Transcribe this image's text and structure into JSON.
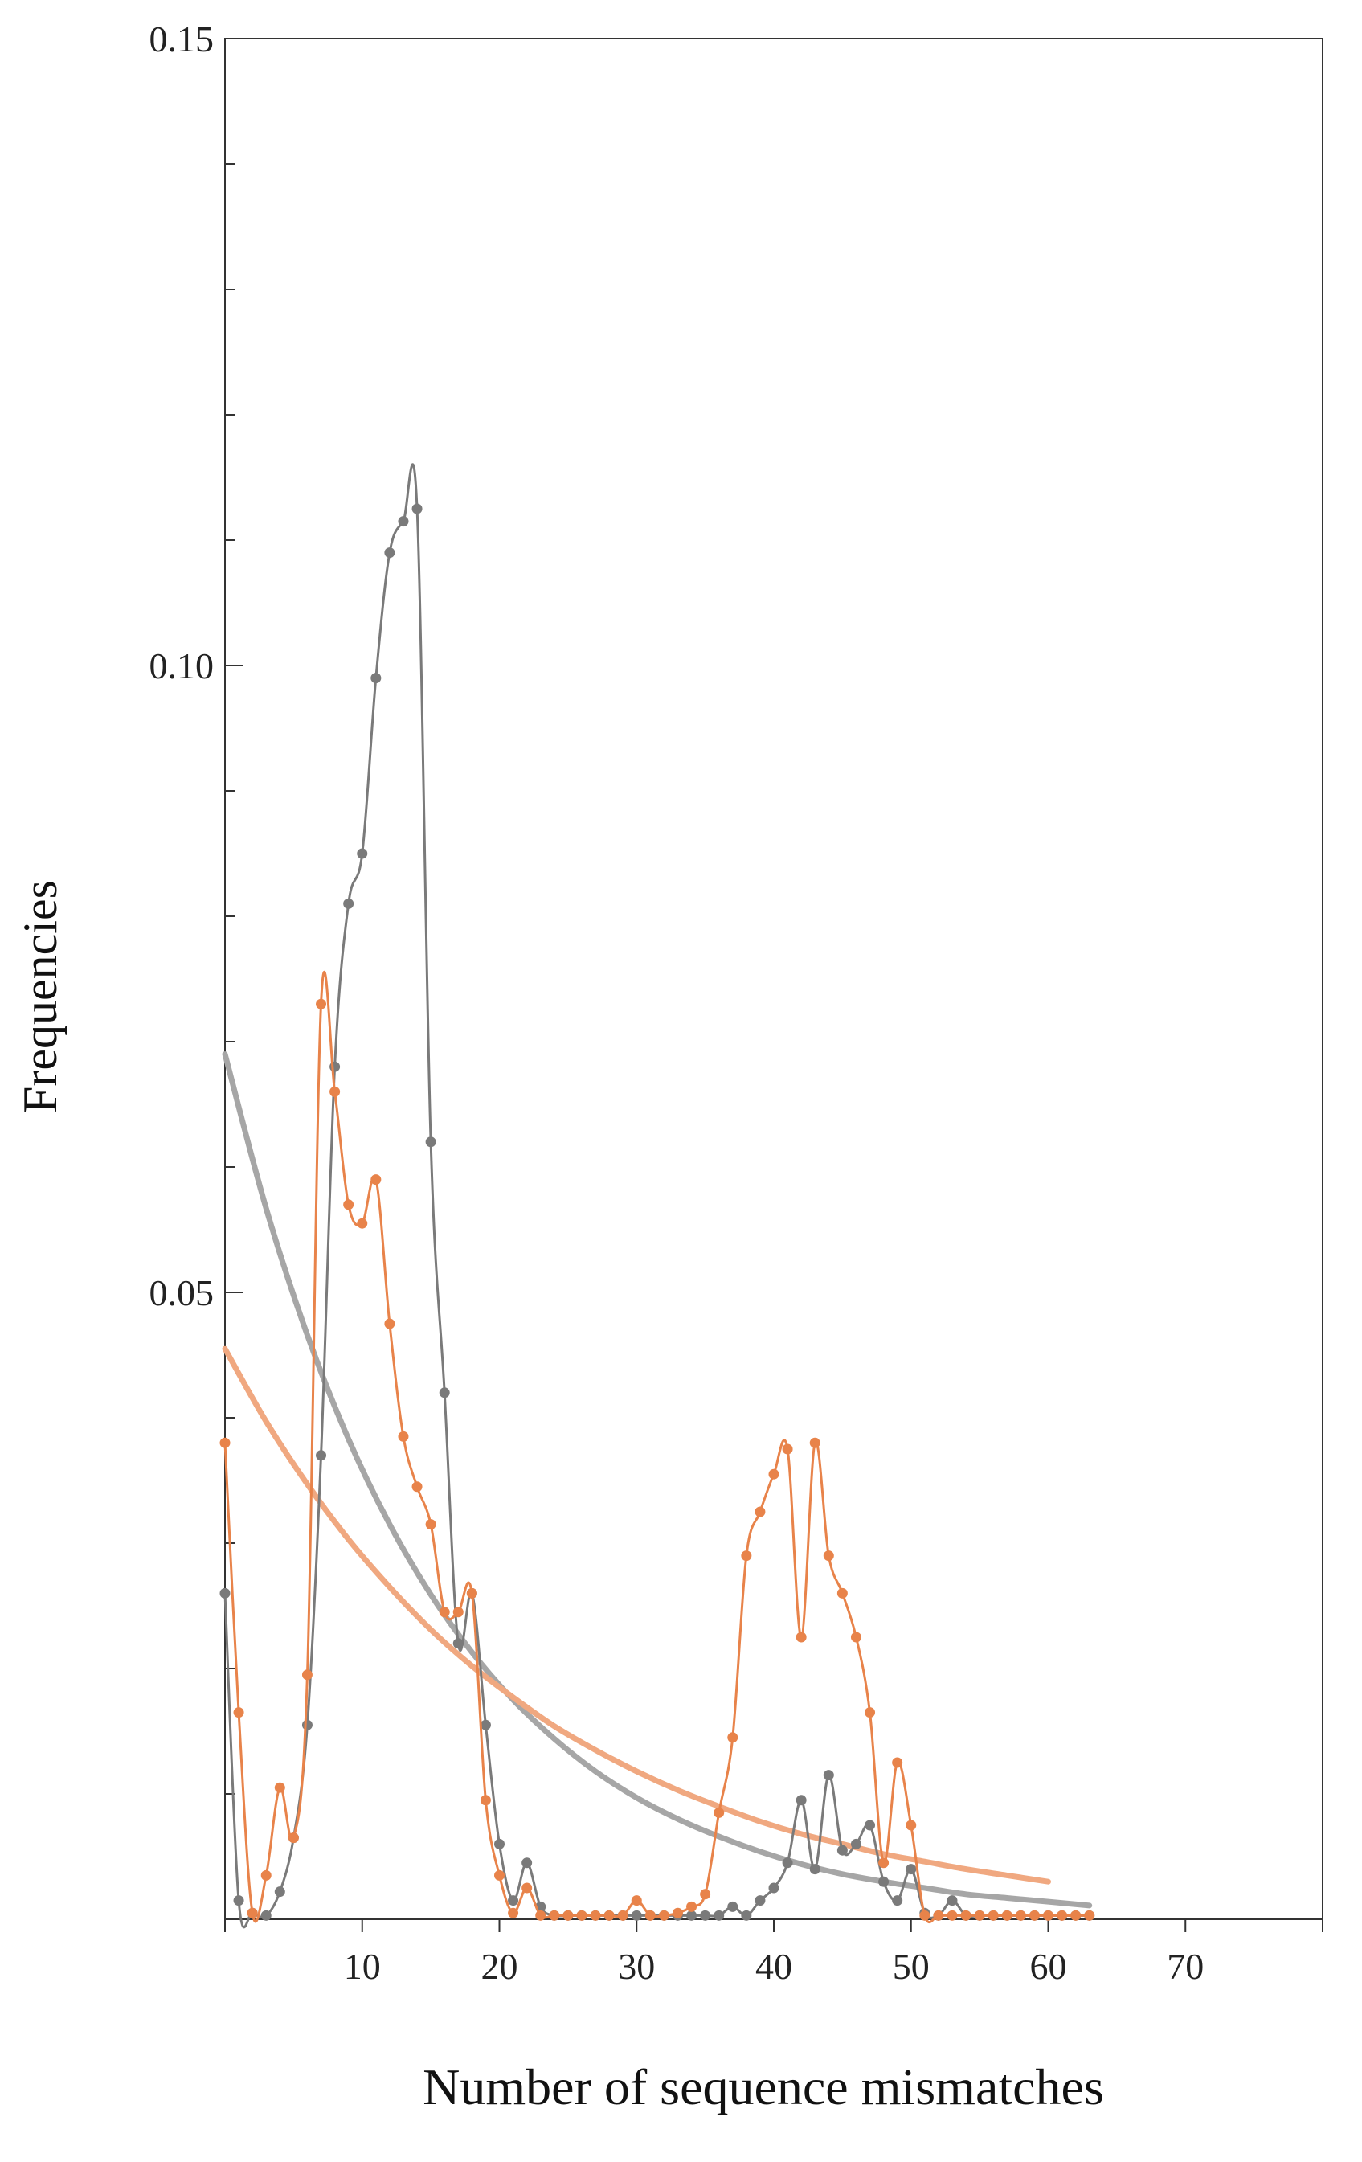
{
  "chart_data": {
    "type": "line",
    "title": "",
    "xlabel": "Number of sequence mismatches",
    "ylabel": "Frequencies",
    "xlim": [
      0,
      80
    ],
    "ylim": [
      0,
      0.15
    ],
    "grid": false,
    "x_ticks": [
      10,
      20,
      30,
      40,
      50,
      60,
      70
    ],
    "x_tick_labels": [
      "10",
      "20",
      "30",
      "40",
      "50",
      "60",
      "70"
    ],
    "y_ticks": [
      0.05,
      0.1,
      0.15
    ],
    "y_tick_labels": [
      "0.05",
      "0.10",
      "0.15"
    ],
    "y_minor_ticks": [
      0.01,
      0.02,
      0.03,
      0.04,
      0.06,
      0.07,
      0.08,
      0.09,
      0.11,
      0.12,
      0.13,
      0.14
    ],
    "series": [
      {
        "kind": "observed",
        "color": "#7a7a7a",
        "x": [
          0,
          1,
          2,
          3,
          4,
          5,
          6,
          7,
          8,
          9,
          10,
          11,
          12,
          13,
          14,
          15,
          16,
          17,
          18,
          19,
          20,
          21,
          22,
          23,
          24,
          25,
          26,
          27,
          28,
          29,
          30,
          31,
          32,
          33,
          34,
          35,
          36,
          37,
          38,
          39,
          40,
          41,
          42,
          43,
          44,
          45,
          46,
          47,
          48,
          49,
          50,
          51,
          52,
          53,
          54,
          55,
          56,
          57,
          58,
          59,
          60,
          61,
          62,
          63
        ],
        "values": [
          0.026,
          0.0015,
          0.0005,
          0.0003,
          0.0022,
          0.0065,
          0.0155,
          0.037,
          0.068,
          0.081,
          0.085,
          0.099,
          0.109,
          0.1115,
          0.1125,
          0.062,
          0.042,
          0.022,
          0.026,
          0.0155,
          0.006,
          0.0015,
          0.0045,
          0.001,
          0.0003,
          0.0003,
          0.0003,
          0.0003,
          0.0003,
          0.0003,
          0.0003,
          0.0003,
          0.0003,
          0.0003,
          0.0003,
          0.0003,
          0.0003,
          0.001,
          0.0003,
          0.0015,
          0.0025,
          0.0045,
          0.0095,
          0.004,
          0.0115,
          0.0055,
          0.006,
          0.0075,
          0.003,
          0.0015,
          0.004,
          0.0005,
          0.0003,
          0.0015,
          0.0003,
          0.0003,
          0.0003,
          0.0003,
          0.0003,
          0.0003,
          0.0003,
          0.0003,
          0.0003,
          0.0003
        ]
      },
      {
        "kind": "observed",
        "color": "#e8834a",
        "x": [
          0,
          1,
          2,
          3,
          4,
          5,
          6,
          7,
          8,
          9,
          10,
          11,
          12,
          13,
          14,
          15,
          16,
          17,
          18,
          19,
          20,
          21,
          22,
          23,
          24,
          25,
          26,
          27,
          28,
          29,
          30,
          31,
          32,
          33,
          34,
          35,
          36,
          37,
          38,
          39,
          40,
          41,
          42,
          43,
          44,
          45,
          46,
          47,
          48,
          49,
          50,
          51,
          52,
          53,
          54,
          55,
          56,
          57,
          58,
          59,
          60,
          61,
          62,
          63
        ],
        "values": [
          0.038,
          0.0165,
          0.0005,
          0.0035,
          0.0105,
          0.0065,
          0.0195,
          0.073,
          0.066,
          0.057,
          0.0555,
          0.059,
          0.0475,
          0.0385,
          0.0345,
          0.0315,
          0.0245,
          0.0245,
          0.026,
          0.0095,
          0.0035,
          0.0005,
          0.0025,
          0.0003,
          0.0003,
          0.0003,
          0.0003,
          0.0003,
          0.0003,
          0.0003,
          0.0015,
          0.0003,
          0.0003,
          0.0005,
          0.001,
          0.002,
          0.0085,
          0.0145,
          0.029,
          0.0325,
          0.0355,
          0.0375,
          0.0225,
          0.038,
          0.029,
          0.026,
          0.0225,
          0.0165,
          0.0045,
          0.0125,
          0.0075,
          0.0003,
          0.0003,
          0.0003,
          0.0003,
          0.0003,
          0.0003,
          0.0003,
          0.0003,
          0.0003,
          0.0003,
          0.0003,
          0.0003,
          0.0003
        ]
      },
      {
        "kind": "expected",
        "color": "#a6a6a6",
        "x": [
          0,
          3,
          6,
          9,
          12,
          15,
          18,
          21,
          24,
          27,
          30,
          33,
          36,
          39,
          42,
          45,
          48,
          51,
          54,
          57,
          60,
          63
        ],
        "values": [
          0.069,
          0.0567,
          0.0466,
          0.0383,
          0.0315,
          0.0259,
          0.0213,
          0.0175,
          0.0144,
          0.0118,
          0.0097,
          0.008,
          0.0066,
          0.0054,
          0.0044,
          0.0036,
          0.003,
          0.0025,
          0.002,
          0.0017,
          0.0014,
          0.0011
        ]
      },
      {
        "kind": "expected",
        "color": "#f0a880",
        "x": [
          0,
          3,
          6,
          9,
          12,
          15,
          18,
          21,
          24,
          27,
          30,
          33,
          36,
          39,
          42,
          45,
          48,
          51,
          54,
          57,
          60
        ],
        "values": [
          0.0455,
          0.0397,
          0.0347,
          0.0303,
          0.0265,
          0.0231,
          0.0202,
          0.0177,
          0.0154,
          0.0135,
          0.0118,
          0.0103,
          0.009,
          0.0078,
          0.0068,
          0.006,
          0.0052,
          0.0046,
          0.004,
          0.0035,
          0.003
        ]
      }
    ]
  }
}
